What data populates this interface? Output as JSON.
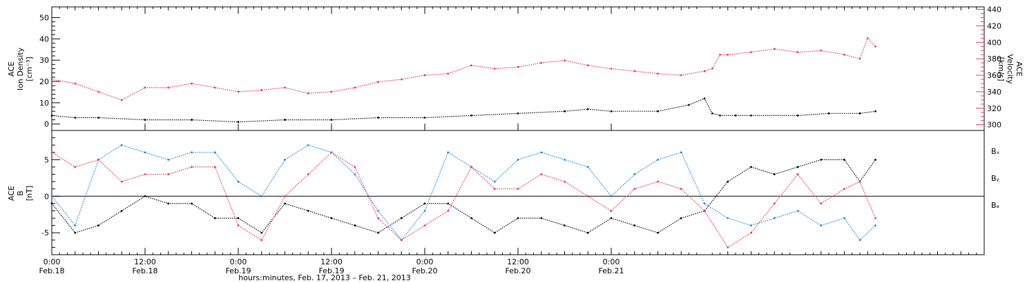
{
  "chart_data": [
    {
      "type": "scatter",
      "panel": "top",
      "ylabel_left": [
        "ACE",
        "Ion Density",
        "[cm⁻³]"
      ],
      "ylabel_right": [
        "ACE",
        "Velocity",
        "[km/s]"
      ],
      "ylim_left": [
        -3,
        55
      ],
      "ylim_right": [
        293,
        443
      ],
      "yticks_left": [
        0,
        10,
        20,
        30,
        40,
        50
      ],
      "yticks_right": [
        300,
        320,
        340,
        360,
        380,
        400,
        420,
        440
      ],
      "series": [
        {
          "axis": "left",
          "color": "#000000",
          "x": [
            0,
            3,
            6,
            12,
            18,
            24,
            30,
            36,
            42,
            48,
            54,
            60,
            66,
            69,
            72,
            78,
            82,
            84,
            85,
            86,
            88,
            90,
            96,
            100,
            104,
            106
          ],
          "y": [
            4,
            3,
            3,
            2,
            2,
            1,
            2,
            2,
            3,
            3,
            4,
            5,
            6,
            7,
            6,
            6,
            9,
            12,
            5,
            4,
            4,
            4,
            4,
            5,
            5,
            6
          ]
        },
        {
          "axis": "right",
          "color": "#e8335a",
          "x": [
            0,
            3,
            6,
            9,
            12,
            15,
            18,
            21,
            24,
            27,
            30,
            33,
            36,
            39,
            42,
            45,
            48,
            51,
            54,
            57,
            60,
            63,
            66,
            69,
            72,
            75,
            78,
            81,
            84,
            85,
            86,
            87,
            90,
            93,
            96,
            99,
            102,
            104,
            105,
            106
          ],
          "y": [
            355,
            350,
            340,
            330,
            345,
            345,
            350,
            345,
            340,
            342,
            345,
            338,
            340,
            345,
            352,
            355,
            360,
            362,
            372,
            368,
            370,
            375,
            378,
            372,
            368,
            365,
            362,
            360,
            365,
            368,
            385,
            385,
            388,
            392,
            388,
            390,
            385,
            380,
            405,
            395
          ]
        }
      ]
    },
    {
      "type": "scatter",
      "panel": "bottom",
      "ylabel_left": [
        "ACE",
        "B",
        "[nT]"
      ],
      "ylim": [
        -8,
        9
      ],
      "yticks": [
        -5,
        0,
        5
      ],
      "zero_line": true,
      "legend": [
        "Bₓ",
        "Bᵧ",
        "Bₔ"
      ],
      "series": [
        {
          "name": "Bx",
          "color": "#000000",
          "x": [
            0,
            3,
            6,
            9,
            12,
            15,
            18,
            21,
            24,
            27,
            30,
            33,
            36,
            39,
            42,
            45,
            48,
            51,
            54,
            57,
            60,
            63,
            66,
            69,
            72,
            75,
            78,
            81,
            84,
            87,
            90,
            93,
            96,
            99,
            102,
            104,
            106
          ],
          "y": [
            -1,
            -5,
            -4,
            -2,
            0,
            -1,
            -1,
            -3,
            -3,
            -5,
            -1,
            -2,
            -3,
            -4,
            -5,
            -3,
            -1,
            -1,
            -3,
            -5,
            -3,
            -3,
            -4,
            -5,
            -3,
            -4,
            -5,
            -3,
            -2,
            2,
            4,
            3,
            4,
            5,
            5,
            2,
            5
          ]
        },
        {
          "name": "By",
          "color": "#1a86e0",
          "x": [
            0,
            3,
            6,
            9,
            12,
            15,
            18,
            21,
            24,
            27,
            30,
            33,
            36,
            39,
            42,
            45,
            48,
            51,
            54,
            57,
            60,
            63,
            66,
            69,
            72,
            75,
            78,
            81,
            84,
            87,
            90,
            93,
            96,
            99,
            102,
            104,
            106
          ],
          "y": [
            0,
            -4,
            5,
            7,
            6,
            5,
            6,
            6,
            2,
            0,
            5,
            7,
            6,
            3,
            -2,
            -6,
            -2,
            6,
            4,
            2,
            5,
            6,
            5,
            4,
            0,
            3,
            5,
            6,
            -1,
            -3,
            -4,
            -3,
            -2,
            -4,
            -3,
            -6,
            -4
          ]
        },
        {
          "name": "Bz",
          "color": "#e8335a",
          "x": [
            0,
            3,
            6,
            9,
            12,
            15,
            18,
            21,
            24,
            27,
            30,
            33,
            36,
            39,
            42,
            45,
            48,
            51,
            54,
            57,
            60,
            63,
            66,
            69,
            72,
            75,
            78,
            81,
            84,
            87,
            90,
            93,
            96,
            99,
            102,
            104,
            106
          ],
          "y": [
            6,
            4,
            5,
            2,
            3,
            3,
            4,
            4,
            -4,
            -6,
            0,
            3,
            6,
            4,
            -3,
            -6,
            -4,
            -2,
            4,
            1,
            1,
            3,
            2,
            0,
            -2,
            1,
            2,
            1,
            -2,
            -7,
            -5,
            -1,
            3,
            -1,
            1,
            2,
            -3
          ]
        }
      ]
    }
  ],
  "x_axis": {
    "xlim": [
      0,
      120
    ],
    "ticks": [
      {
        "x": 0,
        "time": "0:00",
        "date": "Feb.18"
      },
      {
        "x": 12,
        "time": "12:00",
        "date": "Feb.18"
      },
      {
        "x": 24,
        "time": "0:00",
        "date": "Feb.19"
      },
      {
        "x": 36,
        "time": "12:00",
        "date": "Feb.19"
      },
      {
        "x": 48,
        "time": "0:00",
        "date": "Feb.20"
      },
      {
        "x": 60,
        "time": "12:00",
        "date": "Feb.20"
      },
      {
        "x": 72,
        "time": "0:00",
        "date": "Feb.21"
      }
    ],
    "label": "hours:minutes, Feb. 17, 2013 – Feb. 21, 2013"
  },
  "colors": {
    "bx": "#000000",
    "by": "#1a86e0",
    "bz": "#e8335a",
    "velocity": "#e8335a",
    "density": "#000000"
  }
}
